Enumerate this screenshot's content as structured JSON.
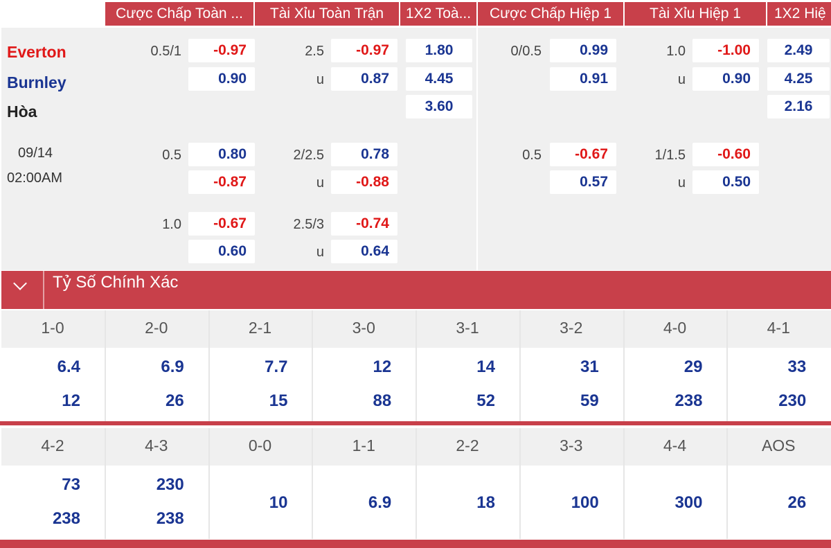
{
  "header": {
    "columns": [
      "Cược Chấp Toàn ...",
      "Tài Xỉu Toàn Trận",
      "1X2 Toà...",
      "Cược Chấp Hiệp 1",
      "Tài Xỉu Hiệp 1",
      "1X2 Hiệ"
    ]
  },
  "match": {
    "home": "Everton",
    "away": "Burnley",
    "draw": "Hòa",
    "date": "09/14",
    "time": "02:00AM"
  },
  "full_handicap": [
    {
      "line": "0.5/1",
      "home": "-0.97",
      "away": "0.90"
    },
    {
      "line": "0.5",
      "home": "0.80",
      "away": "-0.87"
    },
    {
      "line": "1.0",
      "home": "-0.67",
      "away": "0.60"
    }
  ],
  "full_ou": [
    {
      "line": "2.5",
      "over": "-0.97",
      "u": "u",
      "under": "0.87"
    },
    {
      "line": "2/2.5",
      "over": "0.78",
      "u": "u",
      "under": "-0.88"
    },
    {
      "line": "2.5/3",
      "over": "-0.74",
      "u": "u",
      "under": "0.64"
    }
  ],
  "full_1x2": [
    "1.80",
    "4.45",
    "3.60"
  ],
  "h1_handicap": [
    {
      "line": "0/0.5",
      "home": "0.99",
      "away": "0.91"
    },
    {
      "line": "0.5",
      "home": "-0.67",
      "away": "0.57"
    }
  ],
  "h1_ou": [
    {
      "line": "1.0",
      "over": "-1.00",
      "u": "u",
      "under": "0.90"
    },
    {
      "line": "1/1.5",
      "over": "-0.60",
      "u": "u",
      "under": "0.50"
    }
  ],
  "h1_1x2": [
    "2.49",
    "4.25",
    "2.16"
  ],
  "exact_score": {
    "title": "Tỷ Số Chính Xác",
    "row1": [
      {
        "label": "1-0",
        "a": "6.4",
        "b": "12"
      },
      {
        "label": "2-0",
        "a": "6.9",
        "b": "26"
      },
      {
        "label": "2-1",
        "a": "7.7",
        "b": "15"
      },
      {
        "label": "3-0",
        "a": "12",
        "b": "88"
      },
      {
        "label": "3-1",
        "a": "14",
        "b": "52"
      },
      {
        "label": "3-2",
        "a": "31",
        "b": "59"
      },
      {
        "label": "4-0",
        "a": "29",
        "b": "238"
      },
      {
        "label": "4-1",
        "a": "33",
        "b": "230"
      }
    ],
    "row2": [
      {
        "label": "4-2",
        "a": "73",
        "b": "238"
      },
      {
        "label": "4-3",
        "a": "230",
        "b": "238"
      },
      {
        "label": "0-0",
        "single": "10"
      },
      {
        "label": "1-1",
        "single": "6.9"
      },
      {
        "label": "2-2",
        "single": "18"
      },
      {
        "label": "3-3",
        "single": "100"
      },
      {
        "label": "4-4",
        "single": "300"
      },
      {
        "label": "AOS",
        "single": "26"
      }
    ]
  },
  "colors": {
    "accent": "#c8404a",
    "negative": "#e01818",
    "positive": "#1a3592"
  }
}
